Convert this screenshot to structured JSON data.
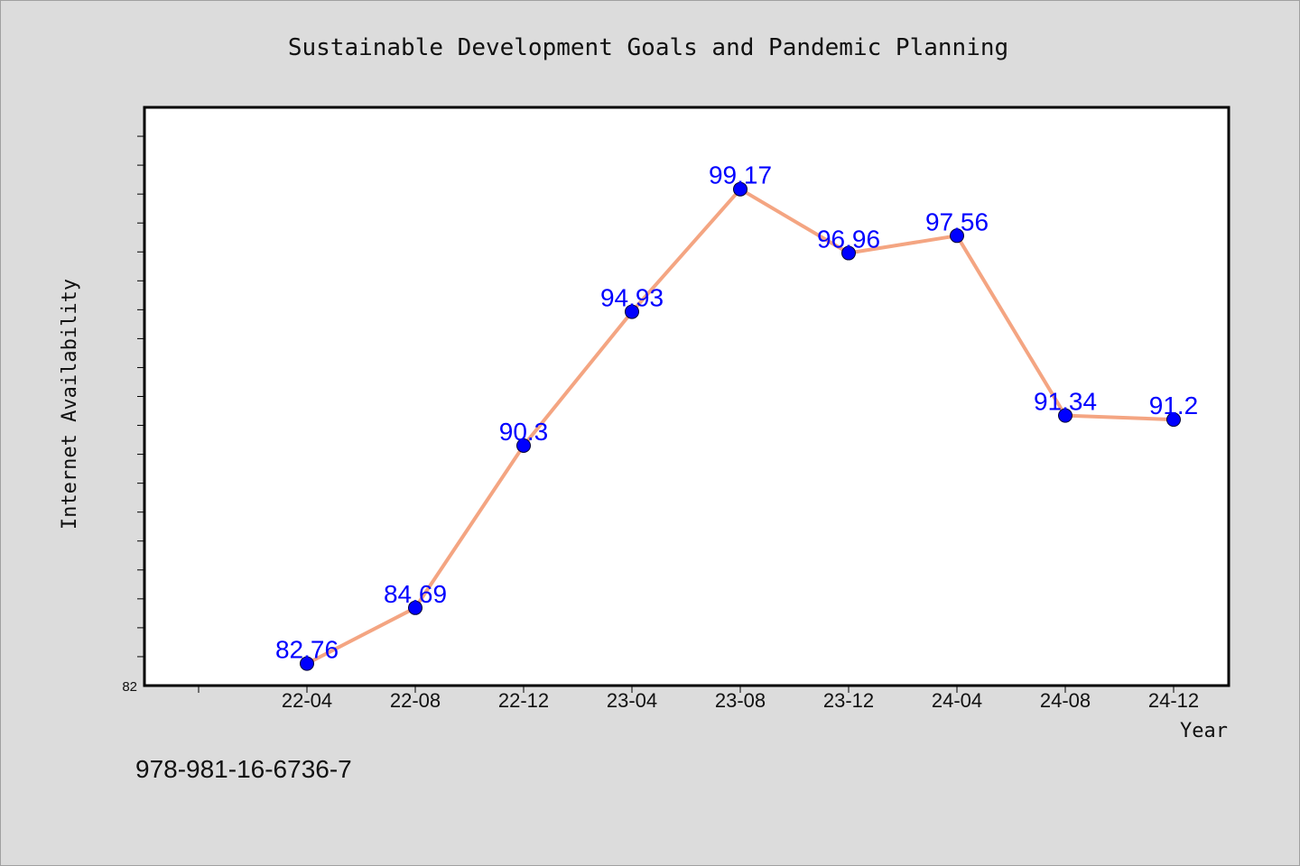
{
  "chart_data": {
    "type": "line",
    "title": "Sustainable Development Goals and Pandemic Planning",
    "xlabel": "Year",
    "ylabel": "Internet Availability",
    "categories": [
      "22-04",
      "22-08",
      "22-12",
      "23-04",
      "23-08",
      "23-12",
      "24-04",
      "24-08",
      "24-12"
    ],
    "series": [
      {
        "values": [
          82.76,
          84.69,
          90.3,
          94.93,
          99.17,
          96.96,
          97.56,
          91.34,
          91.2
        ],
        "labels": [
          "82.76",
          "84.69",
          "90.3",
          "94.93",
          "99.17",
          "96.96",
          "97.56",
          "91.34",
          "91.2"
        ]
      }
    ],
    "ylim": [
      82,
      102
    ],
    "y_tick_labels": [
      "82"
    ],
    "grid": false,
    "line_color": "#f4a582",
    "marker_color": "#0000ff",
    "label_color": "#0000ff"
  },
  "footer": {
    "isbn": "978-981-16-6736-7"
  }
}
